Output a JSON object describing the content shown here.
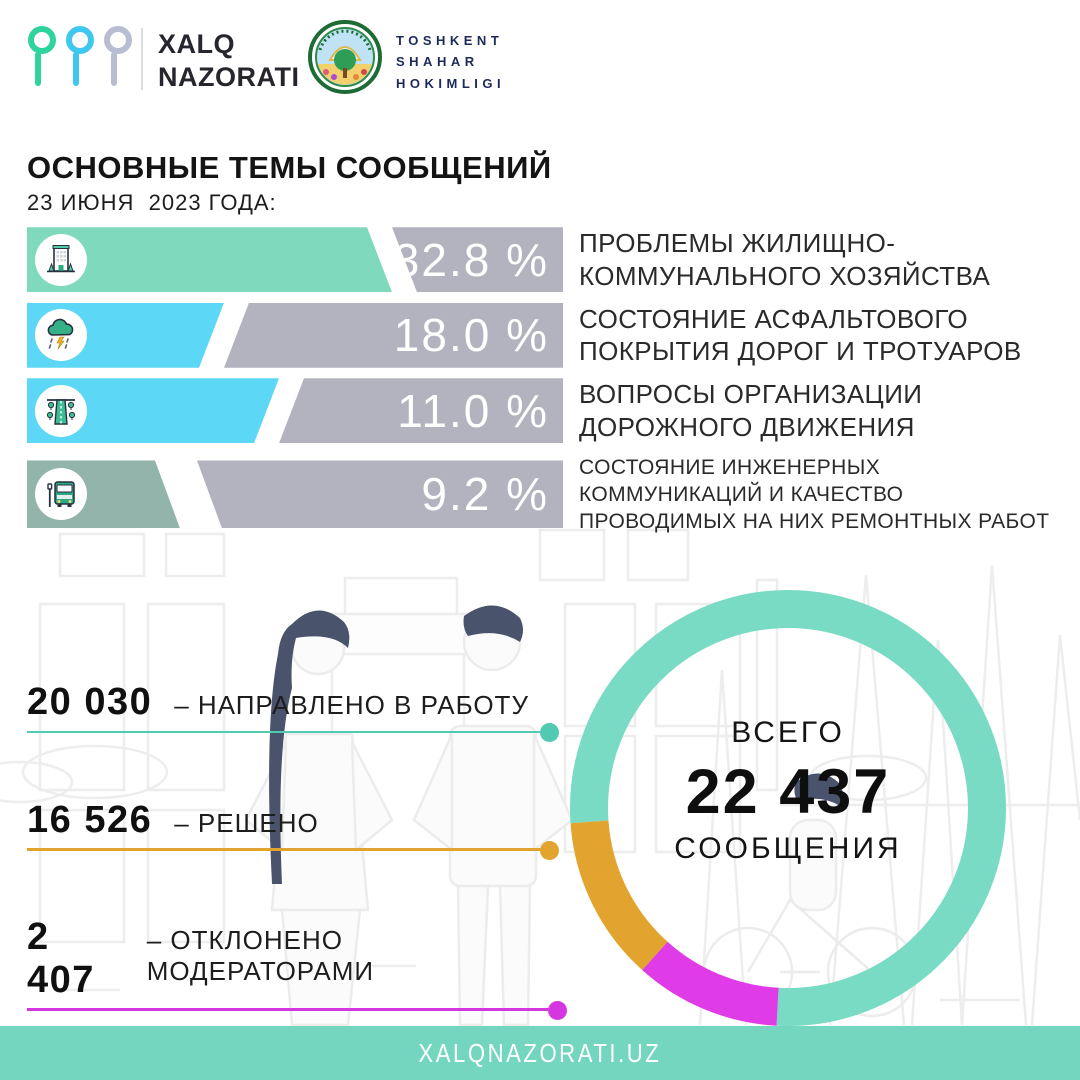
{
  "header": {
    "brand": {
      "line1": "XALQ",
      "line2": "NAZORATI",
      "pin_colors": [
        "#2fd39e",
        "#3ec8ee",
        "#b8bdd2"
      ]
    },
    "city": {
      "line1": "TOSHKENT",
      "line2": "SHAHAR",
      "line3": "HOKIMLIGI"
    }
  },
  "title": "ОСНОВНЫЕ ТЕМЫ СООБЩЕНИЙ",
  "subtitle": "23 ИЮНЯ  2023 ГОДА:",
  "colors": {
    "bar_rest_gray": "#b2b3bf",
    "footer_teal": "#74d6bf",
    "accent_teal": "#79dbc3",
    "accent_orange": "#e2a42f",
    "accent_magenta": "#df3be7"
  },
  "topics": [
    {
      "icon": "building-icon",
      "color": "#7ed9bd",
      "percent": "32.8 %",
      "value": 32.8,
      "lines": [
        "ПРОБЛЕМЫ ЖИЛИЩНО-",
        "КОММУНАЛЬНОГО ХОЗЯЙСТВА"
      ]
    },
    {
      "icon": "storm-cloud-icon",
      "color": "#5cd7f6",
      "percent": "18.0 %",
      "value": 18.0,
      "lines": [
        "СОСТОЯНИЕ АСФАЛЬТОВОГО",
        "ПОКРЫТИЯ ДОРОГ И ТРОТУАРОВ"
      ]
    },
    {
      "icon": "road-icon",
      "color": "#5cd7f6",
      "percent": "11.0 %",
      "value": 11.0,
      "lines": [
        "ВОПРОСЫ ОРГАНИЗАЦИИ",
        "ДОРОЖНОГО ДВИЖЕНИЯ"
      ]
    },
    {
      "icon": "bus-icon",
      "color": "#92b4ab",
      "percent": "9.2 %",
      "value": 9.2,
      "lines": [
        "СОСТОЯНИЕ ИНЖЕНЕРНЫХ",
        "КОММУНИКАЦИЙ И КАЧЕСТВО",
        "ПРОВОДИМЫХ НА НИХ РЕМОНТНЫХ РАБОТ"
      ]
    }
  ],
  "stats": [
    {
      "value": "20 030",
      "label": "–  НАПРАВЛЕНО В РАБОТУ",
      "color": "#52c9b1"
    },
    {
      "value": "16 526",
      "label": "–  РЕШЕНО",
      "color": "#e2a42f"
    },
    {
      "value": "2 407",
      "label": "–  ОТКЛОНЕНО МОДЕРАТОРАМИ",
      "color": "#d437e0"
    }
  ],
  "donut": {
    "label_top": "ВСЕГО",
    "total": "22 437",
    "label_bottom": "СООБЩЕНИЯ",
    "start_deg": 266,
    "ring_width": 38,
    "segments": [
      {
        "name": "направлено в работу",
        "color": "#79dbc3",
        "arc_deg": 277
      },
      {
        "name": "отклонено модераторами",
        "color": "#df3be7",
        "arc_deg": 39
      },
      {
        "name": "решено",
        "color": "#e2a42f",
        "arc_deg": 44
      }
    ]
  },
  "footer": {
    "url": "XALQNAZORATI.UZ"
  },
  "chart_data": [
    {
      "type": "bar",
      "title": "ОСНОВНЫЕ ТЕМЫ СООБЩЕНИЙ",
      "subtitle": "23 ИЮНЯ 2023 ГОДА:",
      "categories": [
        "ПРОБЛЕМЫ ЖИЛИЩНО-КОММУНАЛЬНОГО ХОЗЯЙСТВА",
        "СОСТОЯНИЕ АСФАЛЬТОВОГО ПОКРЫТИЯ ДОРОГ И ТРОТУАРОВ",
        "ВОПРОСЫ ОРГАНИЗАЦИИ ДОРОЖНОГО ДВИЖЕНИЯ",
        "СОСТОЯНИЕ ИНЖЕНЕРНЫХ КОММУНИКАЦИЙ И КАЧЕСТВО ПРОВОДИМЫХ НА НИХ РЕМОНТНЫХ РАБОТ"
      ],
      "values": [
        32.8,
        18.0,
        11.0,
        9.2
      ],
      "unit": "%",
      "orientation": "horizontal",
      "bar_colors": [
        "#7ed9bd",
        "#5cd7f6",
        "#5cd7f6",
        "#92b4ab"
      ]
    },
    {
      "type": "pie",
      "subtype": "donut",
      "title": "ВСЕГО 22 437 СООБЩЕНИЯ",
      "labels": [
        "НАПРАВЛЕНО В РАБОТУ",
        "РЕШЕНО",
        "ОТКЛОНЕНО МОДЕРАТОРАМИ"
      ],
      "values": [
        20030,
        16526,
        2407
      ],
      "total_label": "22 437",
      "segment_colors": [
        "#79dbc3",
        "#e2a42f",
        "#df3be7"
      ],
      "visual_arc_degrees": [
        277,
        44,
        39
      ]
    }
  ]
}
